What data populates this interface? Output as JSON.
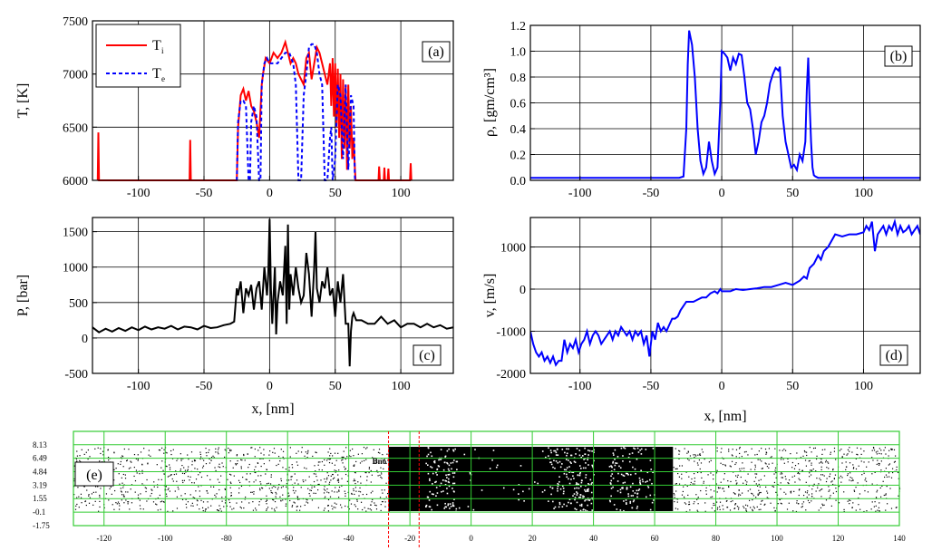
{
  "chart_data": [
    {
      "panel_label": "(a)",
      "type": "line",
      "ylabel": "T, [K]",
      "xlim": [
        -135,
        140
      ],
      "ylim": [
        6000,
        7500
      ],
      "yticks": [
        6000,
        6500,
        7000,
        7500
      ],
      "xticks": [
        -100,
        -50,
        0,
        50,
        100
      ],
      "grid": true,
      "legend_position": "top-left",
      "series": [
        {
          "name": "Ti",
          "color": "#ff0000",
          "style": "solid",
          "x": [
            -131,
            -130.5,
            -130.5,
            -130,
            -61,
            -60.5,
            -60.5,
            -60,
            -25,
            -24,
            -22,
            -20,
            -18,
            -16,
            -14,
            -12,
            -10,
            -8,
            -6,
            -5,
            -3,
            0,
            3,
            6,
            9,
            12,
            14,
            16,
            18,
            20,
            22,
            24,
            26,
            28,
            30,
            32,
            34,
            36,
            38,
            40,
            42,
            44,
            46,
            47,
            48,
            49,
            50,
            51,
            52,
            53,
            54,
            55,
            56,
            57,
            58,
            59,
            60,
            61,
            62,
            63,
            64,
            65,
            65.5,
            83,
            83.5,
            83.5,
            84,
            87,
            87.5,
            87.5,
            88,
            90,
            90.5,
            90.5,
            91,
            107,
            107.5,
            107.5,
            108
          ],
          "y": [
            6000,
            6450,
            6450,
            6000,
            6000,
            6380,
            6380,
            6000,
            6000,
            6500,
            6800,
            6860,
            6750,
            6840,
            6700,
            6650,
            6550,
            6400,
            6900,
            7000,
            7150,
            7100,
            7200,
            7150,
            7200,
            7300,
            7200,
            7100,
            7150,
            7100,
            7000,
            6950,
            6900,
            7150,
            7200,
            6950,
            7100,
            7250,
            7200,
            7100,
            7000,
            6900,
            7100,
            6700,
            7150,
            6600,
            7100,
            6500,
            7050,
            6400,
            7000,
            6200,
            6950,
            6300,
            6900,
            6100,
            6900,
            6300,
            6700,
            6200,
            6400,
            6100,
            6000,
            6000,
            6130,
            6130,
            6000,
            6000,
            6120,
            6120,
            6000,
            6000,
            6110,
            6110,
            6000,
            6000,
            6160,
            6160,
            6000
          ]
        },
        {
          "name": "Te",
          "color": "#0000ff",
          "style": "dashed",
          "x": [
            -25,
            -24,
            -22,
            -20,
            -18,
            -16,
            -15,
            -14,
            -12,
            -10,
            -8,
            -7,
            -6,
            -4,
            -2,
            0,
            3,
            6,
            9,
            12,
            15,
            18,
            20,
            22,
            24,
            26,
            28,
            30,
            32,
            34,
            36,
            38,
            40,
            42,
            44,
            46,
            47,
            48,
            50,
            52,
            54,
            56,
            58,
            60,
            62,
            64,
            65
          ],
          "y": [
            6000,
            6550,
            6750,
            6750,
            6700,
            6000,
            6000,
            6550,
            6700,
            6600,
            6000,
            6000,
            6900,
            7100,
            7150,
            7100,
            7100,
            7100,
            7150,
            7200,
            7200,
            7100,
            6900,
            6000,
            6000,
            6800,
            7000,
            7250,
            7280,
            7280,
            7200,
            7000,
            6900,
            6000,
            6000,
            6400,
            6500,
            6000,
            6200,
            6900,
            6800,
            6200,
            6900,
            6100,
            6800,
            6700,
            6000
          ]
        }
      ]
    },
    {
      "panel_label": "(b)",
      "type": "line",
      "ylabel": "ρ, [gm/cm³]",
      "xlim": [
        -135,
        140
      ],
      "ylim": [
        0,
        1.2
      ],
      "yticks": [
        0.0,
        0.2,
        0.4,
        0.6,
        0.8,
        1.0,
        1.2
      ],
      "xticks": [
        -100,
        -50,
        0,
        50,
        100
      ],
      "grid": true,
      "series": [
        {
          "name": "",
          "color": "#0000ff",
          "x": [
            -135,
            -120,
            -100,
            -80,
            -60,
            -40,
            -30,
            -27,
            -25,
            -24,
            -23,
            -21,
            -19,
            -17,
            -15,
            -13,
            -11,
            -9,
            -7,
            -5,
            -3,
            -1,
            0,
            2,
            4,
            6,
            8,
            10,
            12,
            14,
            16,
            18,
            20,
            22,
            24,
            26,
            28,
            30,
            32,
            34,
            36,
            38,
            40,
            41,
            43,
            45,
            47,
            49,
            51,
            53,
            55,
            57,
            59,
            60,
            61,
            62,
            63,
            64,
            65,
            66,
            68,
            70,
            80,
            100,
            120,
            140
          ],
          "y": [
            0.02,
            0.02,
            0.02,
            0.02,
            0.02,
            0.02,
            0.02,
            0.03,
            0.4,
            0.9,
            1.16,
            1.05,
            0.8,
            0.4,
            0.15,
            0.05,
            0.1,
            0.3,
            0.15,
            0.05,
            0.1,
            0.6,
            1.0,
            0.98,
            0.95,
            0.85,
            0.95,
            0.9,
            0.98,
            0.97,
            0.8,
            0.6,
            0.55,
            0.4,
            0.2,
            0.3,
            0.45,
            0.5,
            0.6,
            0.75,
            0.82,
            0.87,
            0.85,
            0.88,
            0.5,
            0.3,
            0.2,
            0.1,
            0.12,
            0.08,
            0.2,
            0.15,
            0.3,
            0.7,
            0.95,
            0.6,
            0.3,
            0.1,
            0.04,
            0.03,
            0.02,
            0.02,
            0.02,
            0.02,
            0.02,
            0.02
          ]
        }
      ]
    },
    {
      "panel_label": "(c)",
      "type": "line",
      "ylabel": "P, [bar]",
      "xlabel": "x, [nm]",
      "xlim": [
        -135,
        140
      ],
      "ylim": [
        -500,
        1700
      ],
      "yticks": [
        -500,
        0,
        500,
        1000,
        1500
      ],
      "xticks": [
        -100,
        -50,
        0,
        50,
        100
      ],
      "grid": true,
      "series": [
        {
          "name": "",
          "color": "#000000",
          "x": [
            -135,
            -130,
            -125,
            -120,
            -115,
            -110,
            -105,
            -100,
            -95,
            -90,
            -85,
            -80,
            -75,
            -70,
            -65,
            -60,
            -55,
            -50,
            -45,
            -40,
            -35,
            -30,
            -27,
            -25,
            -24,
            -22,
            -20,
            -18,
            -16,
            -14,
            -12,
            -10,
            -8,
            -6,
            -4,
            -2,
            -1,
            0,
            1,
            2,
            4,
            5,
            6,
            8,
            10,
            12,
            13,
            14,
            15,
            16,
            18,
            20,
            22,
            24,
            26,
            28,
            30,
            32,
            34,
            35,
            36,
            38,
            40,
            42,
            44,
            46,
            48,
            50,
            52,
            54,
            56,
            58,
            60,
            61,
            62,
            63,
            64,
            66,
            70,
            75,
            80,
            85,
            90,
            95,
            100,
            105,
            110,
            115,
            120,
            125,
            130,
            135,
            140
          ],
          "y": [
            150,
            80,
            130,
            90,
            140,
            100,
            150,
            110,
            160,
            120,
            150,
            130,
            170,
            120,
            160,
            150,
            120,
            170,
            140,
            150,
            180,
            200,
            230,
            700,
            600,
            800,
            350,
            700,
            600,
            750,
            400,
            700,
            800,
            400,
            1000,
            600,
            900,
            1680,
            700,
            200,
            1000,
            50,
            500,
            800,
            600,
            1300,
            200,
            1600,
            400,
            900,
            600,
            1000,
            700,
            500,
            600,
            1200,
            900,
            300,
            1000,
            1500,
            700,
            500,
            800,
            700,
            1000,
            600,
            700,
            300,
            800,
            500,
            900,
            200,
            200,
            -400,
            100,
            300,
            350,
            250,
            250,
            200,
            200,
            300,
            200,
            250,
            150,
            200,
            200,
            150,
            200,
            150,
            180,
            130,
            150
          ]
        }
      ]
    },
    {
      "panel_label": "(d)",
      "type": "line",
      "ylabel": "v, [m/s]",
      "xlabel": "x, [nm]",
      "xlim": [
        -135,
        140
      ],
      "ylim": [
        -2000,
        1700
      ],
      "yticks": [
        -2000,
        -1000,
        0,
        1000
      ],
      "xticks": [
        -100,
        -50,
        0,
        50,
        100
      ],
      "grid": true,
      "series": [
        {
          "name": "",
          "color": "#0000ff",
          "x": [
            -135,
            -133,
            -131,
            -129,
            -127,
            -125,
            -123,
            -121,
            -119,
            -117,
            -115,
            -113,
            -111,
            -109,
            -107,
            -105,
            -103,
            -101,
            -99,
            -97,
            -95,
            -93,
            -91,
            -89,
            -87,
            -85,
            -83,
            -81,
            -79,
            -77,
            -75,
            -73,
            -71,
            -69,
            -67,
            -65,
            -63,
            -61,
            -59,
            -57,
            -55,
            -53,
            -51,
            -49,
            -47,
            -45,
            -43,
            -41,
            -39,
            -37,
            -35,
            -33,
            -31,
            -29,
            -27,
            -25,
            -23,
            -20,
            -17,
            -14,
            -11,
            -8,
            -5,
            -3,
            -1,
            0,
            3,
            6,
            10,
            15,
            20,
            25,
            30,
            35,
            40,
            45,
            50,
            55,
            58,
            60,
            62,
            65,
            68,
            70,
            72,
            75,
            80,
            85,
            90,
            95,
            100,
            102,
            104,
            106,
            108,
            110,
            112,
            114,
            116,
            118,
            120,
            122,
            124,
            126,
            128,
            130,
            132,
            134,
            136,
            138,
            140
          ],
          "y": [
            -1000,
            -1300,
            -1500,
            -1600,
            -1500,
            -1700,
            -1600,
            -1750,
            -1600,
            -1800,
            -1700,
            -1700,
            -1200,
            -1500,
            -1300,
            -1400,
            -1200,
            -1500,
            -1300,
            -1200,
            -1000,
            -1300,
            -1100,
            -1000,
            -1100,
            -1300,
            -1200,
            -1100,
            -1000,
            -1200,
            -1000,
            -1100,
            -900,
            -1000,
            -1100,
            -1000,
            -1200,
            -1000,
            -1100,
            -1000,
            -1300,
            -1100,
            -1600,
            -1000,
            -1200,
            -800,
            -1000,
            -900,
            -1000,
            -850,
            -700,
            -700,
            -650,
            -500,
            -400,
            -300,
            -300,
            -300,
            -250,
            -200,
            -200,
            -100,
            -50,
            -100,
            0,
            -50,
            -50,
            -50,
            0,
            -20,
            0,
            20,
            50,
            50,
            100,
            150,
            100,
            200,
            300,
            250,
            500,
            600,
            800,
            700,
            900,
            1000,
            1300,
            1250,
            1300,
            1300,
            1350,
            1500,
            1400,
            1600,
            900,
            1300,
            1400,
            1500,
            1300,
            1500,
            1400,
            1600,
            1300,
            1500,
            1350,
            1400,
            1500,
            1300,
            1400,
            1500,
            1300
          ]
        }
      ]
    },
    {
      "panel_label": "(e)",
      "type": "scatter",
      "xlim": [
        -130,
        140
      ],
      "ylim": [
        -1.75,
        9.77
      ],
      "xticks": [
        -120,
        -100,
        -80,
        -60,
        -40,
        -20,
        0,
        20,
        40,
        60,
        80,
        100,
        120,
        140
      ],
      "yticks": [
        "-1.75",
        "-0.1",
        "1.55",
        "3.19",
        "4.84",
        "6.49",
        "8.13"
      ],
      "yticks_values": [
        -1.75,
        -0.1,
        1.55,
        3.19,
        4.84,
        6.49,
        8.13
      ],
      "grid": true,
      "annotation": "Bno",
      "reference_lines_x": [
        -27,
        -17
      ],
      "dense_regions_x": [
        [
          -27,
          -20
        ],
        [
          20,
          28
        ],
        [
          60,
          64
        ]
      ],
      "colors": {
        "grid": "#33cc33",
        "points": "#000000",
        "ref_lines": "#ff0000"
      }
    }
  ]
}
